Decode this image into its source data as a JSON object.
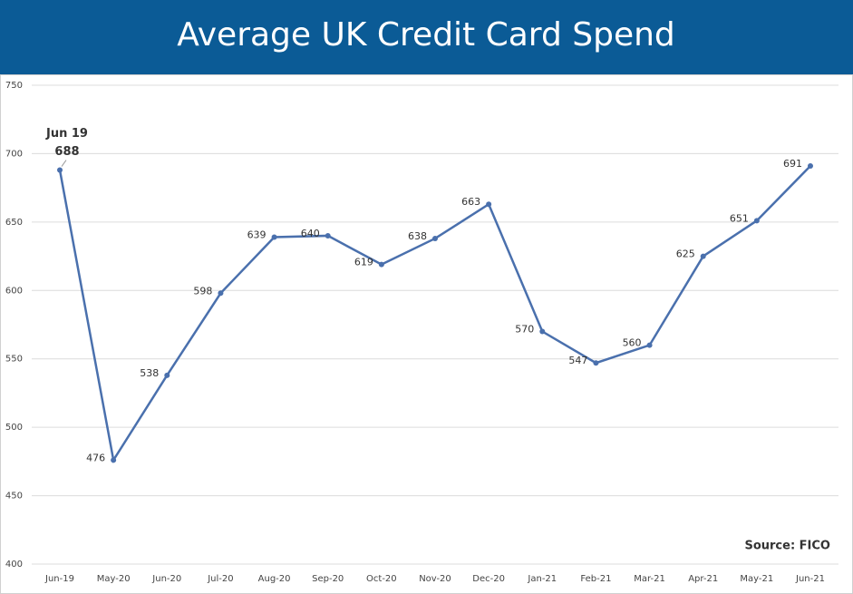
{
  "chart_data": {
    "type": "line",
    "title": "Average UK Credit Card Spend",
    "categories": [
      "Jun-19",
      "May-20",
      "Jun-20",
      "Jul-20",
      "Aug-20",
      "Sep-20",
      "Oct-20",
      "Nov-20",
      "Dec-20",
      "Jan-21",
      "Feb-21",
      "Mar-21",
      "Apr-21",
      "May-21",
      "Jun-21"
    ],
    "series": [
      {
        "name": "Average UK Credit Card Spend",
        "color": "#4a70ad",
        "values": [
          688,
          476,
          538,
          598,
          639,
          640,
          619,
          638,
          663,
          570,
          547,
          560,
          625,
          651,
          691
        ]
      }
    ],
    "annotation": "Jun 19",
    "source": "Source: FICO",
    "ylim": [
      400,
      750
    ],
    "yticks": [
      400,
      450,
      500,
      550,
      600,
      650,
      700,
      750
    ],
    "grid": true
  }
}
